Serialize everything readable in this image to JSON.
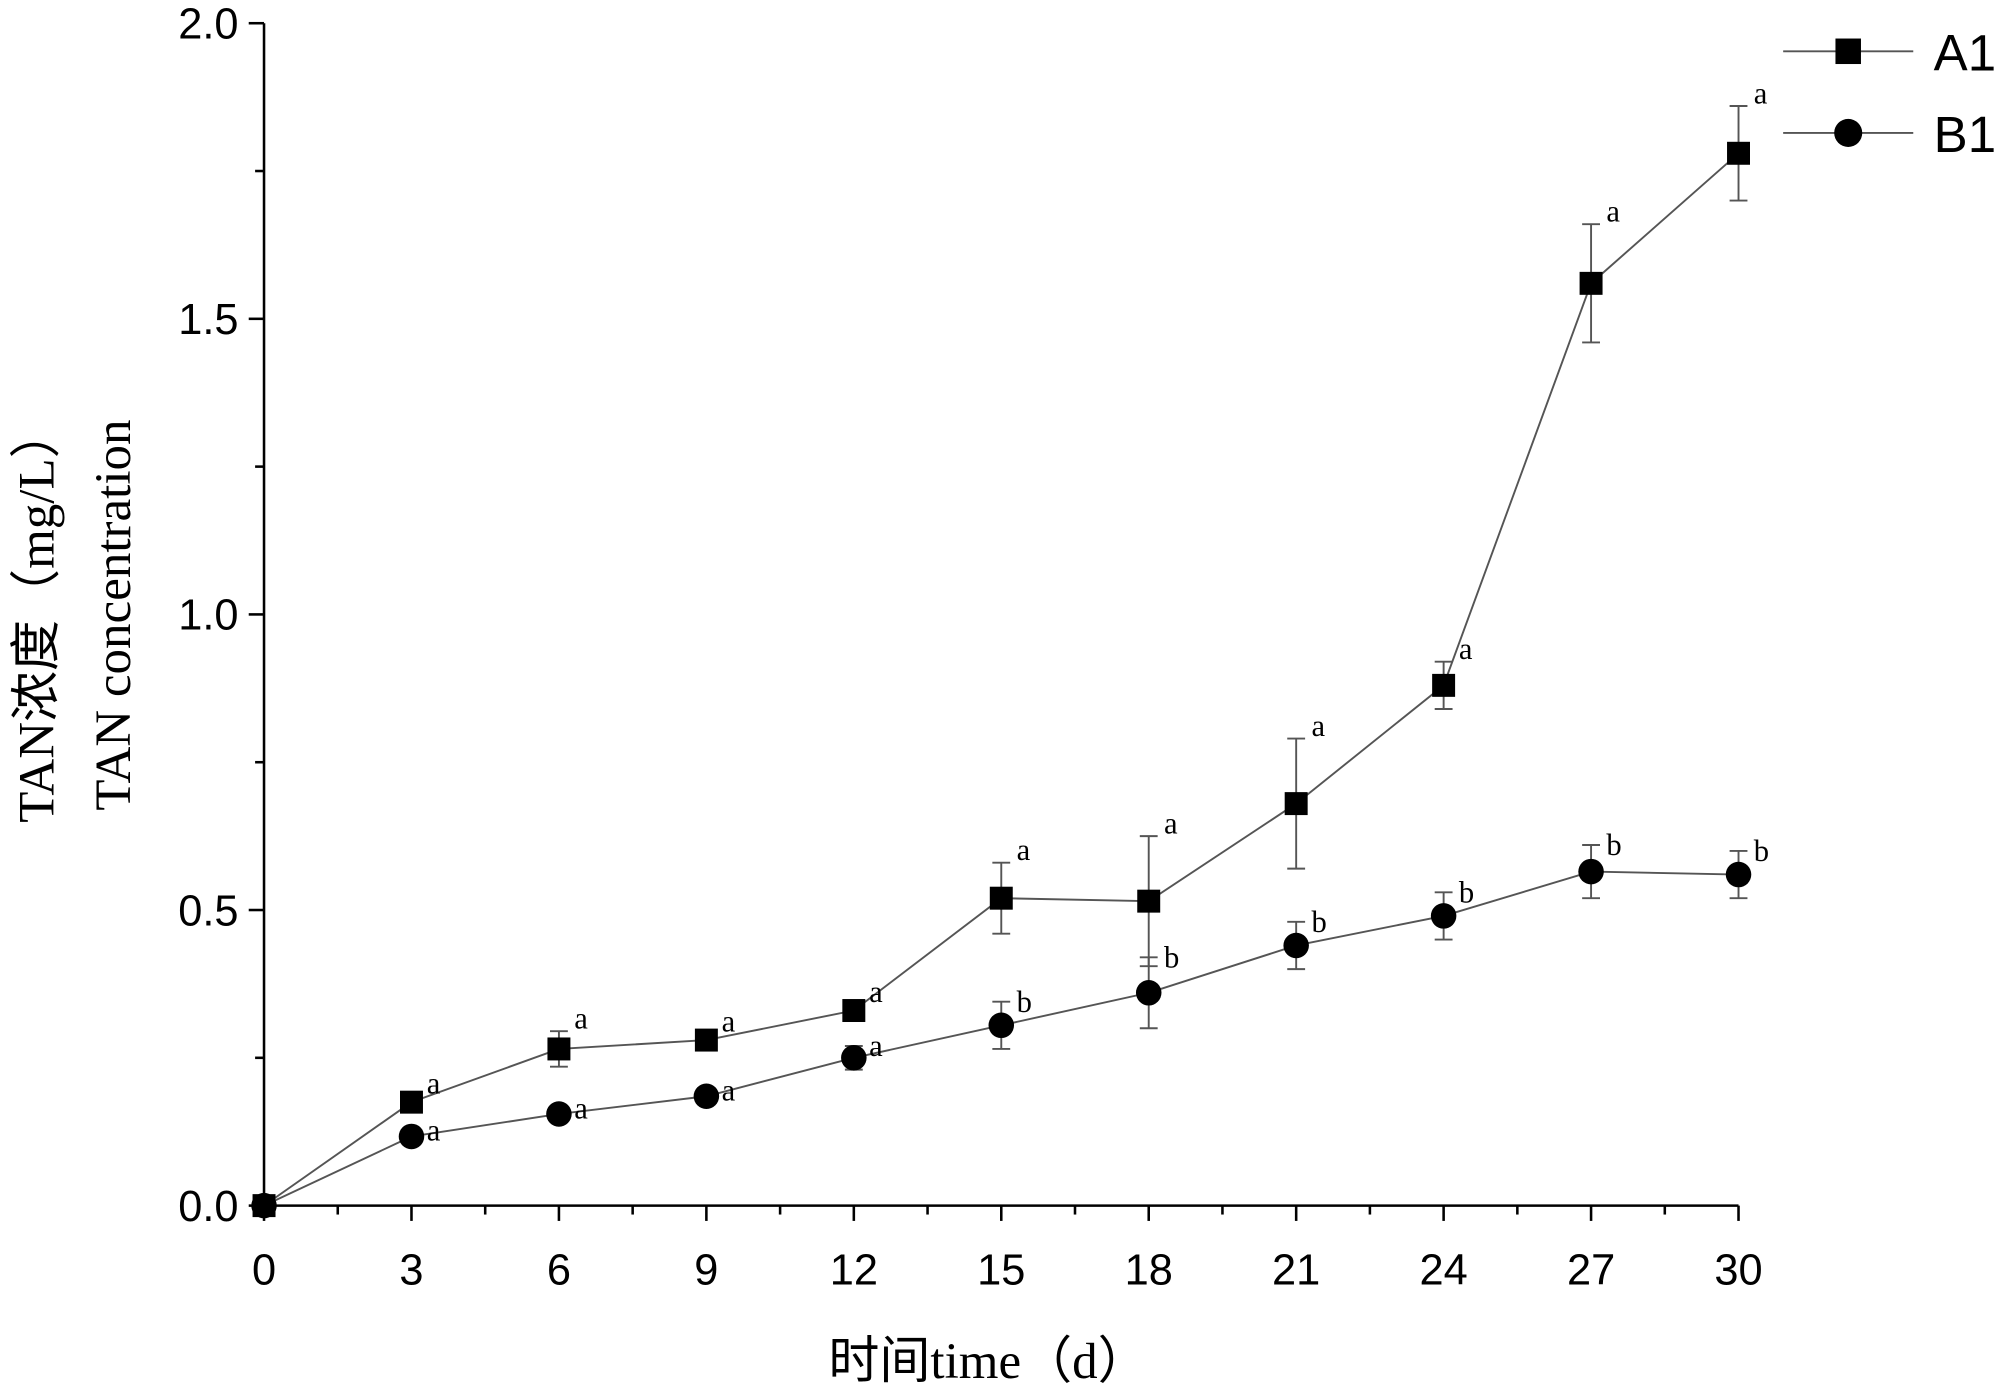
{
  "chart_data": {
    "type": "line",
    "title": "",
    "xlabel": "时间time（d）",
    "ylabel_lines": [
      "TAN浓度（mg/L）",
      "TAN concentration"
    ],
    "xlim": [
      0,
      30
    ],
    "ylim": [
      0,
      2.0
    ],
    "xticks": [
      0,
      3,
      6,
      9,
      12,
      15,
      18,
      21,
      24,
      27,
      30
    ],
    "xtick_labels": [
      "0",
      "3",
      "6",
      "9",
      "12",
      "15",
      "18",
      "21",
      "24",
      "27",
      "30"
    ],
    "yticks": [
      0,
      0.5,
      1.0,
      1.5,
      2.0
    ],
    "ytick_labels": [
      "0.0",
      "0.5",
      "1.0",
      "1.5",
      "2.0"
    ],
    "grid": false,
    "legend_position": "top-right",
    "x": [
      0,
      3,
      6,
      9,
      12,
      15,
      18,
      21,
      24,
      27,
      30
    ],
    "series": [
      {
        "name": "A1",
        "marker": "square",
        "values": [
          0,
          0.175,
          0.265,
          0.28,
          0.33,
          0.52,
          0.515,
          0.68,
          0.88,
          1.56,
          1.78
        ],
        "errors": [
          0,
          0.01,
          0.03,
          0.01,
          0.01,
          0.06,
          0.11,
          0.11,
          0.04,
          0.1,
          0.08
        ],
        "significance": [
          "",
          "a",
          "a",
          "a",
          "a",
          "a",
          "a",
          "a",
          "a",
          "a",
          "a"
        ]
      },
      {
        "name": "B1",
        "marker": "circle",
        "values": [
          0,
          0.117,
          0.155,
          0.185,
          0.25,
          0.305,
          0.36,
          0.44,
          0.49,
          0.565,
          0.56
        ],
        "errors": [
          0,
          0.01,
          0.01,
          0.01,
          0.02,
          0.04,
          0.06,
          0.04,
          0.04,
          0.045,
          0.04
        ],
        "significance": [
          "",
          "a",
          "a",
          "a",
          "a",
          "b",
          "b",
          "b",
          "b",
          "b",
          "b"
        ]
      }
    ]
  }
}
